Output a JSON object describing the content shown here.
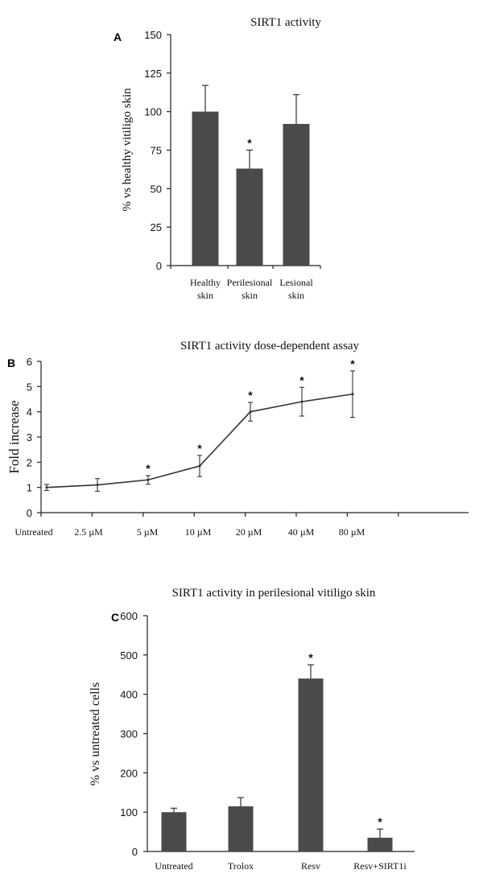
{
  "chart_data": [
    {
      "type": "bar",
      "panel_label": "A",
      "title": "SIRT1 activity",
      "ylabel": "% vs healthy vitiligo skin",
      "xlabel": "",
      "ylim": [
        0,
        150
      ],
      "yticks": [
        "0",
        "25",
        "50",
        "75",
        "100",
        "125",
        "150"
      ],
      "categories": [
        [
          "Healthy",
          "skin"
        ],
        [
          "Perilesional",
          "skin"
        ],
        [
          "Lesional",
          "skin"
        ]
      ],
      "values": [
        100,
        63,
        92
      ],
      "errors": [
        17,
        12,
        19
      ],
      "significance": [
        "",
        "*",
        ""
      ],
      "bar_color": "#4a4a4a"
    },
    {
      "type": "line",
      "panel_label": "B",
      "title": "SIRT1 activity dose-dependent assay",
      "ylabel": "Fold increase",
      "xlabel": "",
      "ylim": [
        0,
        6
      ],
      "yticks": [
        "0",
        "1",
        "2",
        "3",
        "4",
        "5",
        "6"
      ],
      "categories": [
        "Untreated",
        "2.5 µM",
        "5 µM",
        "10 µM",
        "20 µM",
        "40 µM",
        "80 µM"
      ],
      "values": [
        1.0,
        1.1,
        1.3,
        1.85,
        4.0,
        4.4,
        4.7
      ],
      "errors": [
        0.12,
        0.25,
        0.17,
        0.42,
        0.37,
        0.57,
        0.92
      ],
      "significance": [
        "",
        "",
        "*",
        "*",
        "*",
        "*",
        "*"
      ],
      "line_color": "#333333"
    },
    {
      "type": "bar",
      "panel_label": "C",
      "title": "SIRT1 activity in perilesional vitiligo skin",
      "ylabel": "% vs untreated cells",
      "xlabel": "",
      "ylim": [
        0,
        600
      ],
      "yticks": [
        "0",
        "100",
        "200",
        "300",
        "400",
        "500",
        "600"
      ],
      "categories": [
        [
          "Untreated"
        ],
        [
          "Trolox"
        ],
        [
          "Resv"
        ],
        [
          "Resv+SIRT1i"
        ]
      ],
      "values": [
        100,
        115,
        440,
        35
      ],
      "errors": [
        10,
        22,
        35,
        22
      ],
      "significance": [
        "",
        "",
        "*",
        "*"
      ],
      "bar_color": "#4a4a4a"
    }
  ]
}
